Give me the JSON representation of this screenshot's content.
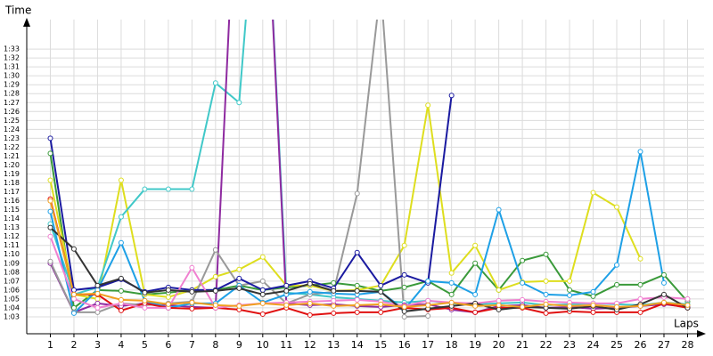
{
  "chart_data": {
    "type": "line",
    "x_label": "Laps",
    "y_label": "Time",
    "x": [
      1,
      2,
      3,
      4,
      5,
      6,
      7,
      8,
      9,
      10,
      11,
      12,
      13,
      14,
      15,
      16,
      17,
      18,
      19,
      20,
      21,
      22,
      23,
      24,
      25,
      26,
      27,
      28
    ],
    "xlim": [
      0,
      28.7
    ],
    "xticks": [
      1,
      2,
      3,
      4,
      5,
      6,
      7,
      8,
      9,
      10,
      11,
      12,
      13,
      14,
      15,
      16,
      17,
      18,
      19,
      20,
      21,
      22,
      23,
      24,
      25,
      26,
      27,
      28
    ],
    "ylim": [
      61.1,
      96.3
    ],
    "yticks": [
      {
        "value": 63,
        "label": "1:03"
      },
      {
        "value": 64,
        "label": "1:04"
      },
      {
        "value": 65,
        "label": "1:05"
      },
      {
        "value": 66,
        "label": "1:06"
      },
      {
        "value": 67,
        "label": "1:07"
      },
      {
        "value": 68,
        "label": "1:08"
      },
      {
        "value": 69,
        "label": "1:09"
      },
      {
        "value": 70,
        "label": "1:10"
      },
      {
        "value": 71,
        "label": "1:11"
      },
      {
        "value": 72,
        "label": "1:12"
      },
      {
        "value": 73,
        "label": "1:13"
      },
      {
        "value": 74,
        "label": "1:14"
      },
      {
        "value": 75,
        "label": "1:15"
      },
      {
        "value": 76,
        "label": "1:16"
      },
      {
        "value": 77,
        "label": "1:17"
      },
      {
        "value": 78,
        "label": "1:18"
      },
      {
        "value": 79,
        "label": "1:19"
      },
      {
        "value": 80,
        "label": "1:20"
      },
      {
        "value": 81,
        "label": "1:21"
      },
      {
        "value": 82,
        "label": "1:22"
      },
      {
        "value": 83,
        "label": "1:23"
      },
      {
        "value": 84,
        "label": "1:24"
      },
      {
        "value": 85,
        "label": "1:25"
      },
      {
        "value": 86,
        "label": "1:26"
      },
      {
        "value": 87,
        "label": "1:27"
      },
      {
        "value": 88,
        "label": "1:28"
      },
      {
        "value": 89,
        "label": "1:29"
      },
      {
        "value": 90,
        "label": "1:30"
      },
      {
        "value": 91,
        "label": "1:31"
      },
      {
        "value": 92,
        "label": "1:32"
      },
      {
        "value": 93,
        "label": "1:33"
      }
    ],
    "grid": true,
    "series": [
      {
        "color": "#3a9a3a",
        "values": [
          81.3,
          64,
          66,
          65.9,
          65.5,
          65.7,
          66,
          66,
          66.5,
          66,
          66.3,
          66.5,
          66.8,
          66.5,
          65.9,
          66.3,
          67,
          65.5,
          69,
          66,
          69.3,
          70,
          66,
          65.3,
          66.6,
          66.6,
          67.7,
          64.7
        ]
      },
      {
        "color": "#dede1e",
        "values": [
          78.3,
          65.5,
          65,
          78.3,
          65.5,
          65.2,
          66,
          67.5,
          68.3,
          69.7,
          66.5,
          66.5,
          65.9,
          66,
          66.5,
          71,
          86.7,
          67.9,
          71,
          66,
          66.9,
          67,
          67,
          76.9,
          75.3,
          69.5,
          null,
          null
        ]
      },
      {
        "color": "#40c8c8",
        "values": [
          73.4,
          65.5,
          66.3,
          74.2,
          77.3,
          77.3,
          77.3,
          89.2,
          87,
          120,
          65.7,
          65.5,
          65.2,
          65,
          64.8,
          64.6,
          64.8,
          64.5,
          64.4,
          64.5,
          64.6,
          64.3,
          64.4,
          64.5,
          64.4,
          64.3,
          64.6,
          64.4
        ]
      },
      {
        "color": "#8e2aa0",
        "values": [
          69,
          63.5,
          64.5,
          64.2,
          64.5,
          64.3,
          64.1,
          64,
          120,
          120,
          64.5,
          64.3,
          64.4,
          64.2,
          64.1,
          64.3,
          64.4,
          63.8,
          63.5,
          64.2,
          64.3,
          64,
          64.1,
          63.9,
          64,
          64.2,
          64.4,
          64.1
        ]
      },
      {
        "color": "#999999",
        "values": [
          69.2,
          63.5,
          63.5,
          64.5,
          64.3,
          64.5,
          64.7,
          70.5,
          66.5,
          67,
          64.5,
          65.5,
          65.8,
          76.8,
          100,
          63,
          63.1,
          null,
          null,
          null,
          null,
          null,
          null,
          null,
          null,
          null,
          null,
          null
        ]
      },
      {
        "color": "#1a1aa0",
        "values": [
          83,
          66,
          66.3,
          67.2,
          65.8,
          66.3,
          66,
          66,
          67.3,
          66,
          66.5,
          67,
          66.2,
          70.2,
          66.5,
          67.7,
          66.8,
          87.8,
          null,
          null,
          null,
          null,
          null,
          null,
          null,
          null,
          null,
          null
        ]
      },
      {
        "color": "#1ea0e6",
        "values": [
          74.8,
          63.4,
          66,
          71.3,
          64.8,
          64,
          64.5,
          64.5,
          66.5,
          64.6,
          65.5,
          65.8,
          65.6,
          65.5,
          65.8,
          63.8,
          67,
          66.8,
          65.5,
          75,
          66.8,
          65.5,
          65.4,
          65.8,
          68.8,
          81.5,
          66.8,
          null
        ]
      },
      {
        "color": "#e01010",
        "values": [
          76.2,
          65.5,
          65.5,
          63.7,
          64.5,
          64,
          63.9,
          64,
          63.8,
          63.3,
          64,
          63.2,
          63.4,
          63.5,
          63.5,
          64,
          63.8,
          64,
          63.5,
          64,
          64,
          63.4,
          63.6,
          63.5,
          63.5,
          63.5,
          64.5,
          64
        ]
      },
      {
        "color": "#f080d0",
        "values": [
          72,
          65,
          64,
          64.5,
          64,
          64,
          68.5,
          64,
          64.3,
          64.5,
          64.6,
          64.7,
          64.8,
          64.9,
          64.7,
          64.2,
          64.8,
          64.6,
          64.5,
          64.8,
          64.9,
          64.7,
          64.6,
          64.5,
          64.5,
          65,
          65.2,
          65
        ]
      },
      {
        "color": "#333333",
        "values": [
          73,
          70.6,
          66.5,
          67.3,
          65.7,
          66,
          65.8,
          65.9,
          66.2,
          65.5,
          65.9,
          66.7,
          65.9,
          65.9,
          65.8,
          63.6,
          63.9,
          64.2,
          64.5,
          63.8,
          64.1,
          64,
          63.9,
          64.2,
          63.8,
          64.4,
          65.5,
          64
        ]
      },
      {
        "color": "#f0a020",
        "values": [
          76,
          65.5,
          65.6,
          64.9,
          64.8,
          64.4,
          64.6,
          64.3,
          64.2,
          64.5,
          64.3,
          64.5,
          64.2,
          64.3,
          64.4,
          64.1,
          64.3,
          64.6,
          64.2,
          64.3,
          64.1,
          64.4,
          64.2,
          64.3,
          64.1,
          64.2,
          64.6,
          64.3
        ]
      }
    ]
  }
}
